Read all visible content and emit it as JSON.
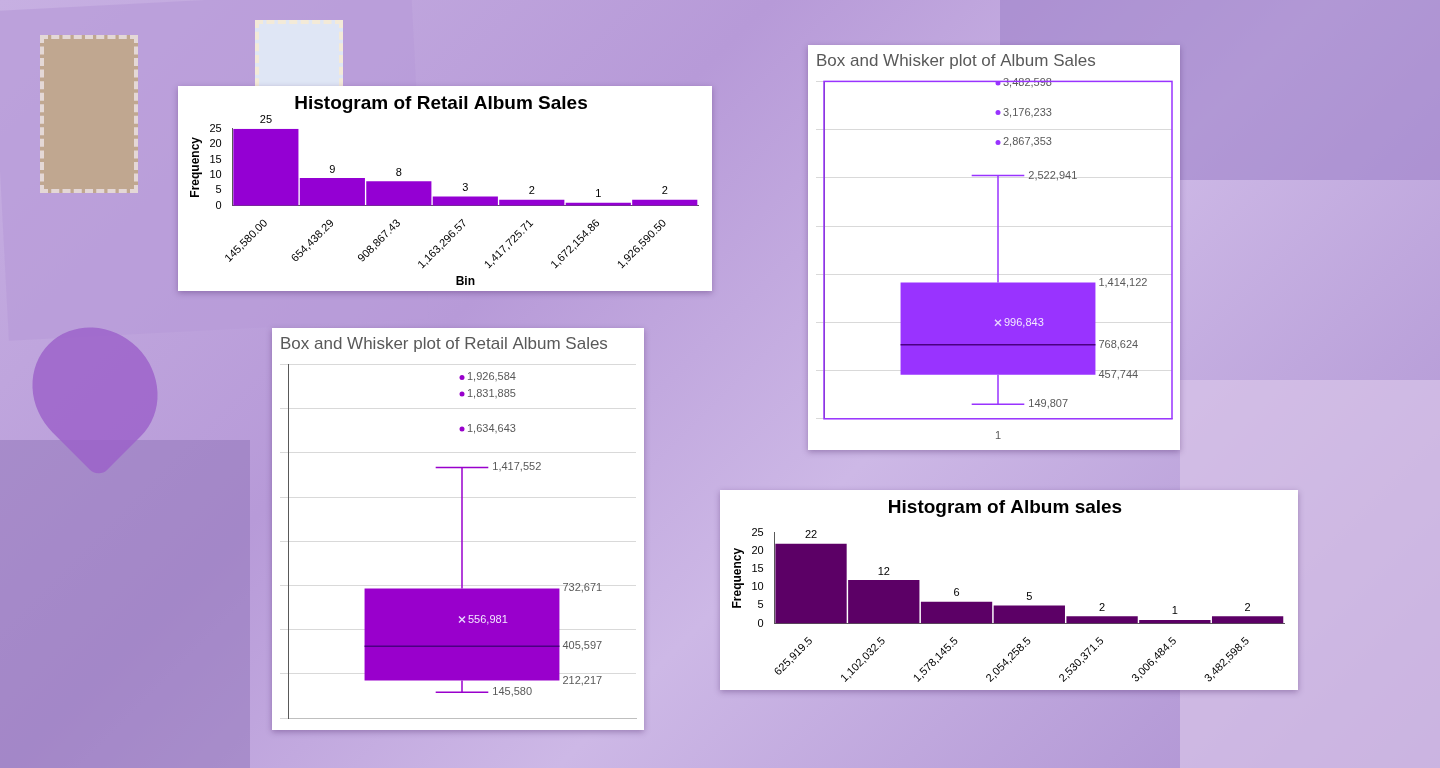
{
  "chart_data": [
    {
      "type": "histogram",
      "title": "Histogram of Retail Album Sales",
      "x_label": "Bin",
      "y_label": "Frequency",
      "categories": [
        "145,580.00",
        "654,438.29",
        "908,867.43",
        "1,163,296.57",
        "1,417,725.71",
        "1,672,154.86",
        "1,926,590.50"
      ],
      "values": [
        25,
        9,
        8,
        3,
        2,
        1,
        2
      ],
      "color": "#9400d3",
      "ylim": [
        0,
        25
      ],
      "yticks": [
        0,
        5,
        10,
        15,
        20,
        25
      ],
      "grid": false,
      "data_labels": true
    },
    {
      "type": "box",
      "title": "Box and Whisker plot of Album Sales",
      "categories": [
        "1"
      ],
      "box": {
        "whisker_low": 149807,
        "q1": 457744,
        "median": 768624,
        "mean": 996843,
        "q3": 1414122,
        "whisker_high": 2522941,
        "outliers": [
          2867353,
          3176233,
          3482598
        ]
      },
      "value_labels": {
        "whisker_low": "149,807",
        "q1": "457,744",
        "median": "768,624",
        "mean": "996,843",
        "q3": "1,414,122",
        "whisker_high": "2,522,941",
        "outliers": [
          "2,867,353",
          "3,176,233",
          "3,482,598"
        ]
      },
      "color": "#9933ff",
      "ylim": [
        0,
        3500000
      ],
      "yticks": [
        0,
        500000,
        1000000,
        1500000,
        2000000,
        2500000,
        3000000,
        3500000
      ],
      "grid": true,
      "data_labels": true,
      "tick_labels": "x"
    },
    {
      "type": "box",
      "title": "Box and Whisker plot of Retail Album Sales",
      "categories": [
        null
      ],
      "box": {
        "whisker_low": 145580,
        "q1": 212217,
        "median": 405597,
        "mean": 556981,
        "q3": 732671,
        "whisker_high": 1417552,
        "outliers": [
          1634643,
          1831885,
          1926584
        ]
      },
      "value_labels": {
        "whisker_low": "145,580",
        "q1": "212,217",
        "median": "405,597",
        "mean": "556,981",
        "q3": "732,671",
        "whisker_high": "1,417,552",
        "outliers": [
          "1,634,643",
          "1,831,885",
          "1,926,584"
        ]
      },
      "color": "#9900cc",
      "ylim": [
        0,
        2000000
      ],
      "yticks": [
        0,
        250000,
        500000,
        750000,
        1000000,
        1250000,
        1500000,
        1750000,
        2000000
      ],
      "grid": true,
      "data_labels": true,
      "tick_labels": false
    },
    {
      "type": "histogram",
      "title": "Histogram of Album sales",
      "y_label": "Frequency",
      "categories": [
        "625,919.5",
        "1,102,032.5",
        "1,578,145.5",
        "2,054,258.5",
        "2,530,371.5",
        "3,006,484.5",
        "3,482,598.5"
      ],
      "values": [
        22,
        12,
        6,
        5,
        2,
        1,
        2
      ],
      "color": "#5c0066",
      "ylim": [
        0,
        25
      ],
      "yticks": [
        0,
        5,
        10,
        15,
        20,
        25
      ],
      "grid": false,
      "data_labels": true
    }
  ]
}
